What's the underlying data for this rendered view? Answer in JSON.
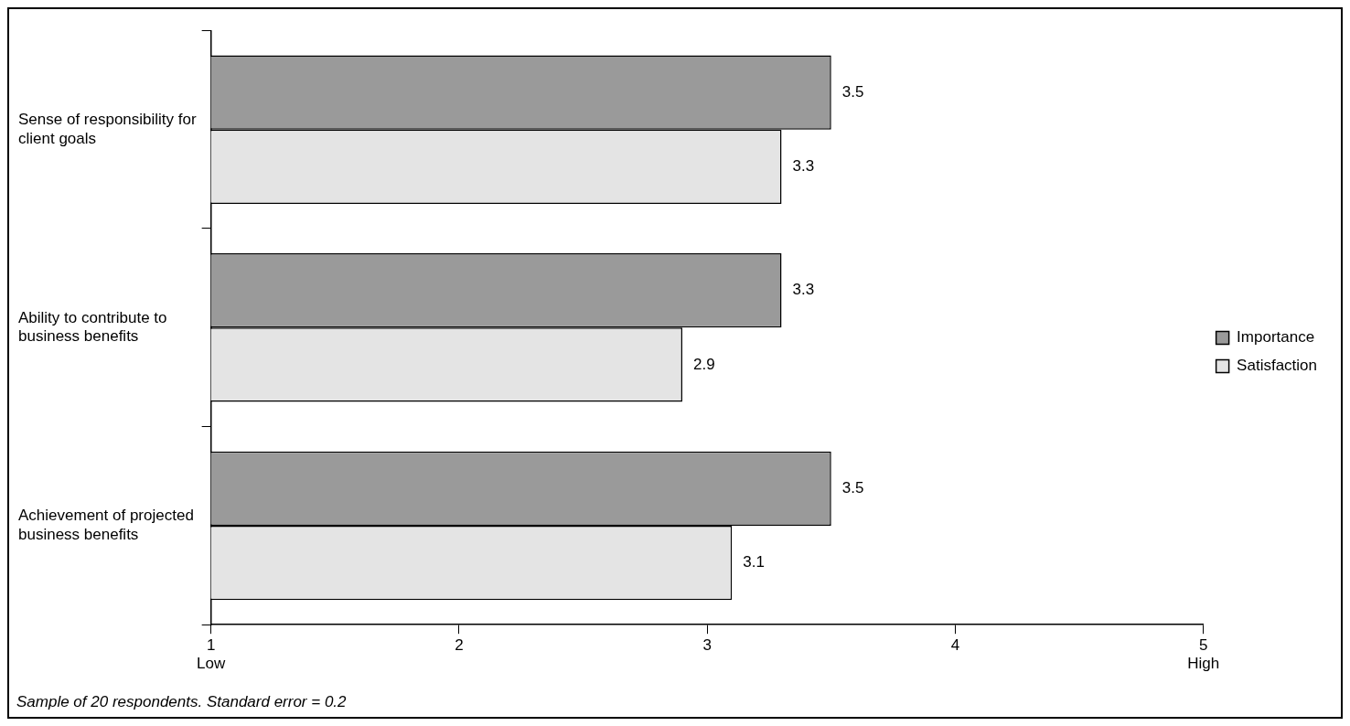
{
  "chart_data": {
    "type": "bar",
    "orientation": "horizontal",
    "categories": [
      "Sense of responsibility for client goals",
      "Ability to contribute to business benefits",
      "Achievement of projected business benefits"
    ],
    "series": [
      {
        "name": "Importance",
        "color": "#9a9a9a",
        "values": [
          3.5,
          3.3,
          3.5
        ]
      },
      {
        "name": "Satisfaction",
        "color": "#e4e4e4",
        "values": [
          3.3,
          2.9,
          3.1
        ]
      }
    ],
    "xlim": [
      1,
      5
    ],
    "xticks": [
      {
        "value": 1,
        "label": "1\nLow"
      },
      2,
      3,
      4,
      {
        "value": 5,
        "label": "5\nHigh"
      }
    ],
    "data_labels": true,
    "legend": "right",
    "grid": false,
    "annotations": [
      "Sample of 20 respondents. Standard error = 0.2"
    ]
  }
}
